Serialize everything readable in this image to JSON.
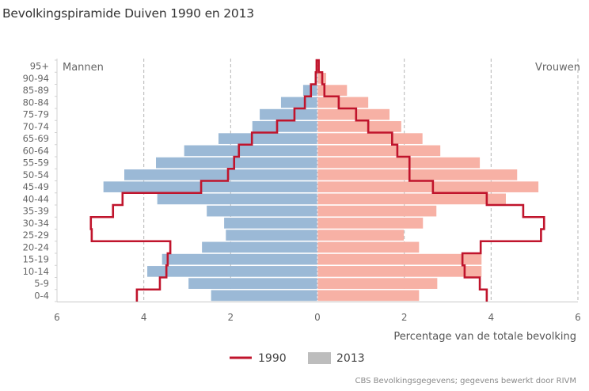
{
  "title": "Bevolkingspiramide Duiven 1990 en 2013",
  "chart_data": {
    "type": "bar",
    "subtype": "population-pyramid",
    "title": "Bevolkingspiramide Duiven 1990 en 2013",
    "xlabel": "Percentage van de totale bevolking",
    "ylabel": "",
    "xlim": [
      -6,
      6
    ],
    "x_ticks": [
      "6",
      "4",
      "2",
      "0",
      "2",
      "4",
      "6"
    ],
    "x_tick_values": [
      -6,
      -4,
      -2,
      0,
      2,
      4,
      6
    ],
    "side_labels": {
      "left": "Mannen",
      "right": "Vrouwen"
    },
    "categories": [
      "95+",
      "90-94",
      "85-89",
      "80-84",
      "75-79",
      "70-74",
      "65-69",
      "60-64",
      "55-59",
      "50-54",
      "45-49",
      "40-44",
      "35-39",
      "30-34",
      "25-29",
      "20-24",
      "15-19",
      "10-14",
      "5-9",
      "0-4"
    ],
    "grid": true,
    "legend": {
      "position": "bottom",
      "entries": [
        {
          "label": "1990",
          "kind": "line",
          "color": "#c0142c"
        },
        {
          "label": "2013",
          "kind": "bar",
          "color": "#bdbdbd"
        }
      ]
    },
    "colors": {
      "men_2013": "#9bb9d6",
      "women_2013": "#f7b1a5",
      "line_1990": "#c0142c"
    },
    "series": [
      {
        "name": "2013 Mannen",
        "values": [
          0.02,
          0.05,
          0.33,
          0.84,
          1.33,
          1.5,
          2.28,
          3.07,
          3.72,
          4.45,
          4.93,
          3.69,
          2.55,
          2.15,
          2.11,
          2.66,
          3.58,
          3.92,
          2.97,
          2.45
        ]
      },
      {
        "name": "2013 Vrouwen",
        "values": [
          0.03,
          0.2,
          0.68,
          1.17,
          1.66,
          1.93,
          2.42,
          2.83,
          3.74,
          4.6,
          5.09,
          4.34,
          2.74,
          2.43,
          1.99,
          2.34,
          3.78,
          3.78,
          2.76,
          2.34
        ]
      },
      {
        "name": "1990 Mannen",
        "values": [
          0.02,
          0.04,
          0.15,
          0.29,
          0.53,
          0.93,
          1.51,
          1.81,
          1.92,
          2.06,
          2.68,
          4.49,
          4.71,
          5.22,
          5.2,
          3.39,
          3.45,
          3.48,
          3.63,
          4.16
        ]
      },
      {
        "name": "1990 Vrouwen",
        "values": [
          0.03,
          0.11,
          0.16,
          0.49,
          0.89,
          1.17,
          1.72,
          1.84,
          2.12,
          2.12,
          2.66,
          3.9,
          4.74,
          5.22,
          5.15,
          3.76,
          3.34,
          3.39,
          3.74,
          3.9
        ]
      }
    ]
  },
  "source": "CBS Bevolkingsgegevens; gegevens bewerkt door RIVM"
}
